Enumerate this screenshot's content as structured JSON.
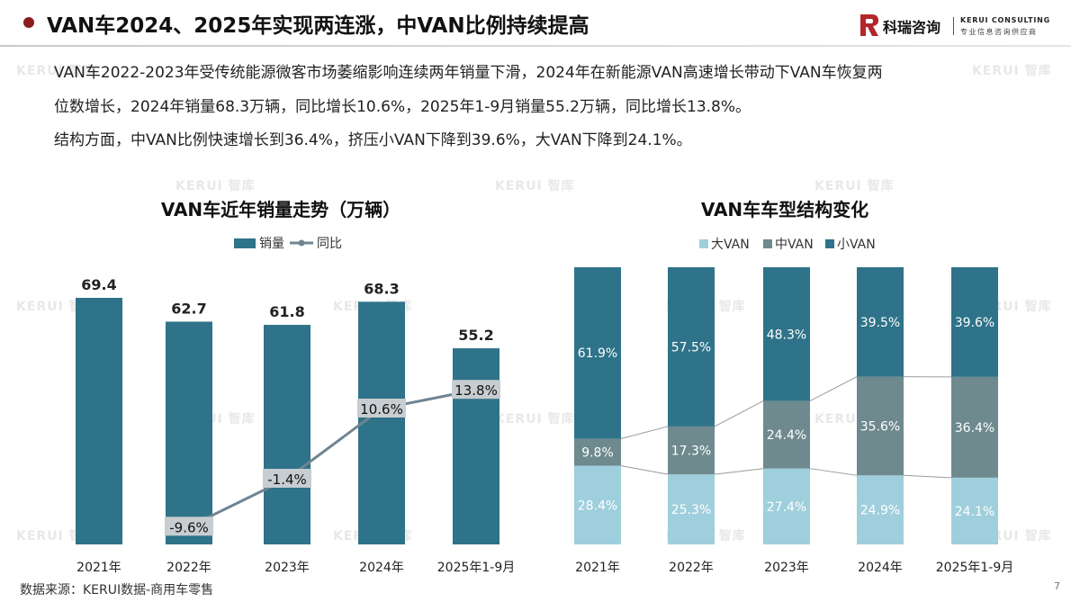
{
  "header": {
    "title": "VAN车2024、2025年实现两连涨，中VAN比例持续提高",
    "logo_cn": "科瑞咨询",
    "logo_en": "KERUI CONSULTING",
    "logo_sub": "专业信息咨询供应商",
    "accent_color": "#8b1d1d"
  },
  "body": {
    "line1": "VAN车2022-2023年受传统能源微客市场萎缩影响连续两年销量下滑，2024年在新能源VAN高速增长带动下VAN车恢复两",
    "line2": "位数增长，2024年销量68.3万辆，同比增长10.6%，2025年1-9月销量55.2万辆，同比增长13.8%。",
    "line3": "结构方面，中VAN比例快速增长到36.4%，挤压小VAN下降到39.6%，大VAN下降到24.1%。"
  },
  "watermark": {
    "brand": "KERUI",
    "suffix": "智库"
  },
  "chart_data": [
    {
      "type": "bar",
      "title": "VAN车近年销量走势（万辆）",
      "categories": [
        "2021年",
        "2022年",
        "2023年",
        "2024年",
        "2025年1-9月"
      ],
      "series": [
        {
          "name": "销量",
          "type": "bar",
          "values": [
            69.4,
            62.7,
            61.8,
            68.3,
            55.2
          ],
          "color": "#2e7389"
        },
        {
          "name": "同比",
          "type": "line",
          "values": [
            null,
            -9.6,
            -1.4,
            10.6,
            13.8
          ],
          "unit": "%",
          "color": "#6f8591"
        }
      ],
      "value_labels": [
        "69.4",
        "62.7",
        "61.8",
        "68.3",
        "55.2"
      ],
      "yoy_labels": [
        "",
        "-9.6%",
        "-1.4%",
        "10.6%",
        "13.8%"
      ],
      "legend": "top",
      "grid": false
    },
    {
      "type": "bar",
      "stacked": true,
      "percent": true,
      "title": "VAN车车型结构变化",
      "categories": [
        "2021年",
        "2022年",
        "2023年",
        "2024年",
        "2025年1-9月"
      ],
      "series": [
        {
          "name": "大VAN",
          "values": [
            28.4,
            25.3,
            27.4,
            24.9,
            24.1
          ],
          "color": "#9fcfdc"
        },
        {
          "name": "中VAN",
          "values": [
            9.8,
            17.3,
            24.4,
            35.6,
            36.4
          ],
          "color": "#6e8a8f"
        },
        {
          "name": "小VAN",
          "values": [
            61.9,
            57.5,
            48.3,
            39.5,
            39.6
          ],
          "color": "#2e7389"
        }
      ],
      "labels": {
        "大VAN": [
          "28.4%",
          "25.3%",
          "27.4%",
          "24.9%",
          "24.1%"
        ],
        "中VAN": [
          "9.8%",
          "17.3%",
          "24.4%",
          "35.6%",
          "36.4%"
        ],
        "小VAN": [
          "61.9%",
          "57.5%",
          "48.3%",
          "39.5%",
          "39.6%"
        ]
      },
      "legend": "top",
      "grid": false
    }
  ],
  "footer": {
    "source": "数据来源：KERUI数据-商用车零售",
    "page": "7"
  }
}
